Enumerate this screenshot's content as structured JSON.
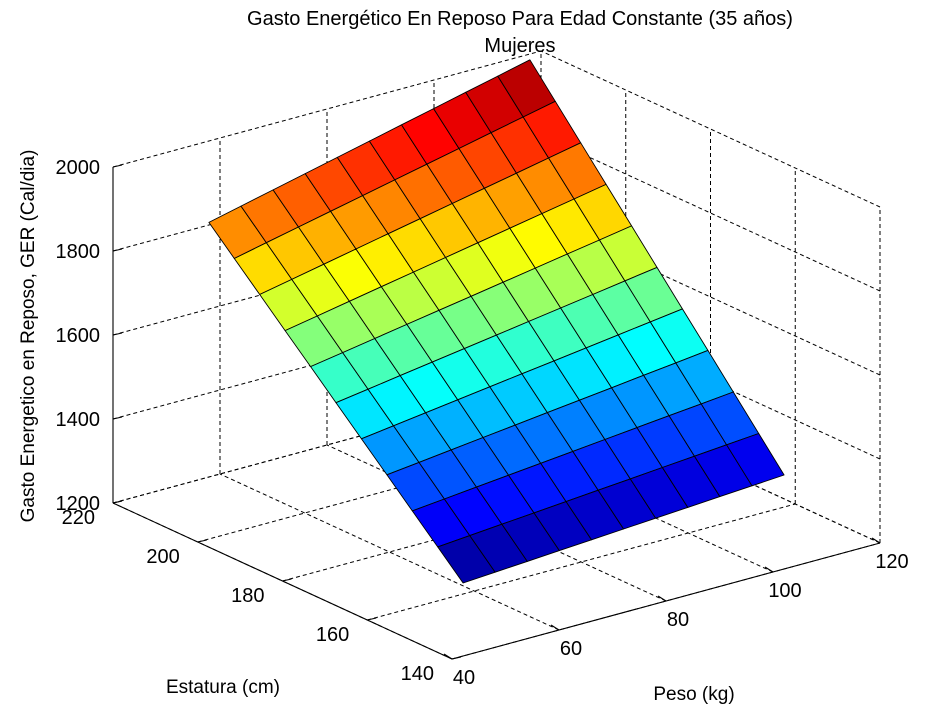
{
  "figure": {
    "title_line1": "Gasto Energético En Reposo Para Edad Constante (35 años)",
    "title_line2": "Mujeres"
  },
  "chart_data": {
    "type": "surface",
    "title": "Gasto Energético En Reposo Para Edad Constante (35 años) Mujeres",
    "xlabel": "Peso (kg)",
    "ylabel": "Estatura (cm)",
    "zlabel": "Gasto Energetico en Reposo, GER (Cal/dia)",
    "xlim": [
      40,
      120
    ],
    "ylim": [
      140,
      220
    ],
    "zlim": [
      1200,
      2000
    ],
    "xticks": [
      "40",
      "60",
      "80",
      "100",
      "120"
    ],
    "yticks": [
      "140",
      "160",
      "180",
      "200",
      "220"
    ],
    "zticks": [
      "1200",
      "1400",
      "1600",
      "1800",
      "2000"
    ],
    "grid": true,
    "colormap": "jet",
    "x_range": [
      50,
      110
    ],
    "y_range": [
      150,
      210
    ],
    "grid_size": [
      11,
      11
    ],
    "corner_values": [
      {
        "peso": 50,
        "estatura": 150,
        "ger": 1300
      },
      {
        "peso": 110,
        "estatura": 150,
        "ger": 1350
      },
      {
        "peso": 50,
        "estatura": 210,
        "ger": 1880
      },
      {
        "peso": 110,
        "estatura": 210,
        "ger": 2060
      }
    ]
  }
}
